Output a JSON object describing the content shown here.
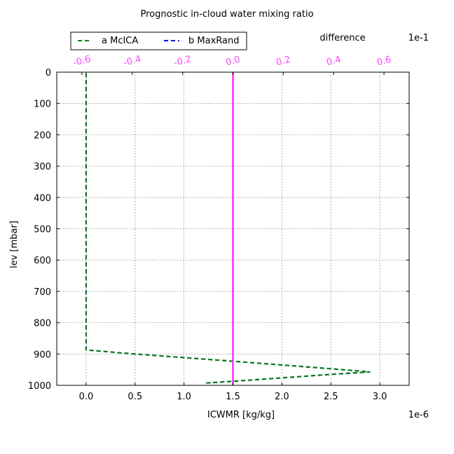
{
  "chart_data": {
    "type": "line",
    "title": "Prognostic in-cloud water mixing ratio",
    "xlabel": "ICWMR [kg/kg]",
    "ylabel": "lev [mbar]",
    "x_offset_label": "1e-6",
    "top_axis_label": "difference",
    "top_offset_label": "1e-1",
    "xlim": [
      -0.3,
      3.3
    ],
    "ylim": [
      1000,
      0
    ],
    "top_xlim": [
      -0.7,
      0.7
    ],
    "x_ticks": [
      0.0,
      0.5,
      1.0,
      1.5,
      2.0,
      2.5,
      3.0
    ],
    "x_tick_labels": [
      "0.0",
      "0.5",
      "1.0",
      "1.5",
      "2.0",
      "2.5",
      "3.0"
    ],
    "y_ticks": [
      0,
      100,
      200,
      300,
      400,
      500,
      600,
      700,
      800,
      900,
      1000
    ],
    "y_tick_labels": [
      "0",
      "100",
      "200",
      "300",
      "400",
      "500",
      "600",
      "700",
      "800",
      "900",
      "1000"
    ],
    "top_ticks": [
      -0.6,
      -0.4,
      -0.2,
      0.0,
      0.2,
      0.4,
      0.6
    ],
    "top_tick_labels": [
      "-0.6",
      "-0.4",
      "-0.2",
      "0.0",
      "0.2",
      "0.4",
      "0.6"
    ],
    "grid": true,
    "legend_placement": "top-left",
    "series": [
      {
        "name": "a McICA",
        "color": "#008000",
        "style": "dashed",
        "points": [
          [
            0,
            3
          ],
          [
            0,
            50
          ],
          [
            0,
            150
          ],
          [
            0,
            300
          ],
          [
            0,
            500
          ],
          [
            0,
            700
          ],
          [
            0,
            850
          ],
          [
            0,
            887
          ],
          [
            0.5,
            900
          ],
          [
            1.5,
            923
          ],
          [
            2.5,
            947
          ],
          [
            2.9,
            957
          ],
          [
            2.5,
            965
          ],
          [
            1.6,
            985
          ],
          [
            1.2,
            993
          ]
        ]
      },
      {
        "name": "b MaxRand",
        "color": "#0000ff",
        "style": "dashed",
        "points": [
          [
            0,
            3
          ],
          [
            0,
            50
          ],
          [
            0,
            150
          ],
          [
            0,
            300
          ],
          [
            0,
            500
          ],
          [
            0,
            700
          ],
          [
            0,
            850
          ],
          [
            0,
            887
          ],
          [
            0.5,
            900
          ],
          [
            1.5,
            923
          ],
          [
            2.5,
            947
          ],
          [
            2.9,
            957
          ],
          [
            2.5,
            965
          ],
          [
            1.6,
            985
          ],
          [
            1.2,
            993
          ]
        ]
      },
      {
        "name": "difference",
        "color": "#ff00ff",
        "style": "solid",
        "axis": "top",
        "points": [
          [
            0,
            0
          ],
          [
            0,
            1000
          ]
        ]
      }
    ]
  }
}
